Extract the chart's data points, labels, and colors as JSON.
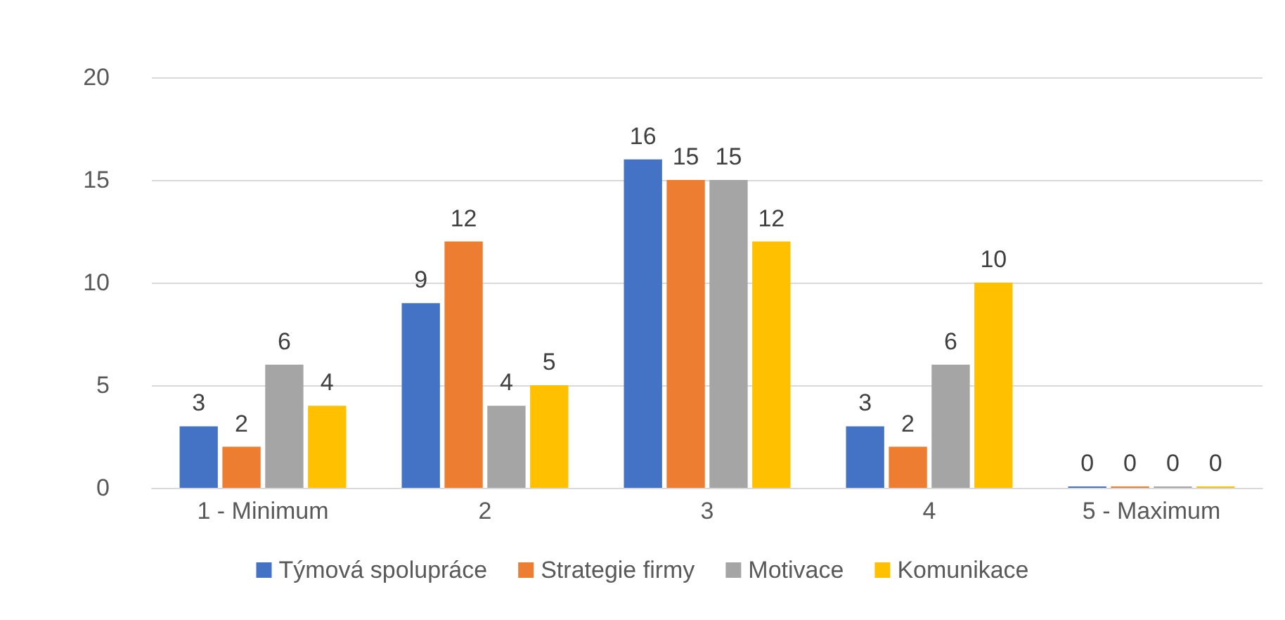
{
  "chart_data": {
    "type": "bar",
    "categories": [
      "1 - Minimum",
      "2",
      "3",
      "4",
      "5 - Maximum"
    ],
    "series": [
      {
        "name": "Týmová spolupráce",
        "color": "#4472c4",
        "values": [
          3,
          9,
          16,
          3,
          0
        ]
      },
      {
        "name": "Strategie firmy",
        "color": "#ed7d31",
        "values": [
          2,
          12,
          15,
          2,
          0
        ]
      },
      {
        "name": "Motivace",
        "color": "#a5a5a5",
        "values": [
          6,
          4,
          15,
          6,
          0
        ]
      },
      {
        "name": "Komunikace",
        "color": "#ffc000",
        "values": [
          4,
          5,
          12,
          10,
          0
        ]
      }
    ],
    "ylim": [
      0,
      20
    ],
    "yticks": [
      0,
      5,
      10,
      15,
      20
    ],
    "grid": "y",
    "legend": "bottom",
    "data_labels": true
  }
}
